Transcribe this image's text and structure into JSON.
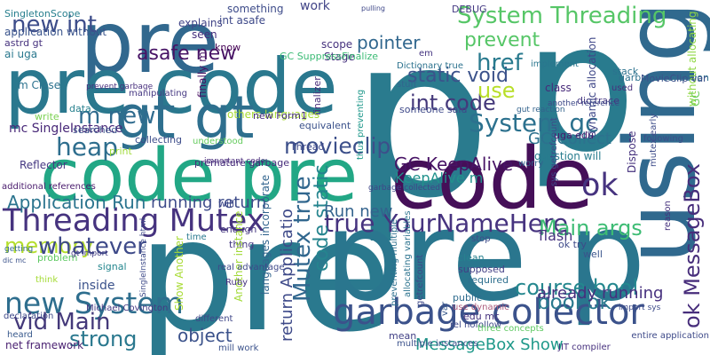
{
  "words": [
    {
      "text": "p",
      "color": "#2a7b8e"
    },
    {
      "text": "p",
      "color": "#297b8e"
    },
    {
      "text": "pre",
      "color": "#31688e"
    },
    {
      "text": "pre",
      "color": "#2a798e"
    },
    {
      "text": "code",
      "color": "#450f58"
    },
    {
      "text": "code pre",
      "color": "#22a785"
    },
    {
      "text": "pre code",
      "color": "#2a788e"
    },
    {
      "text": "gt gt",
      "color": "#2e6f8e"
    },
    {
      "text": "using",
      "color": "#30698e"
    },
    {
      "text": "pre p",
      "color": "#2a768e"
    },
    {
      "text": "garbage collector",
      "color": "#3b528b"
    },
    {
      "text": "System Threading",
      "color": "#56c667"
    },
    {
      "text": "Threading Mutex",
      "color": "#46337f"
    },
    {
      "text": "true YourNameHere",
      "color": "#46337f"
    },
    {
      "text": "System gc",
      "color": "#2c718e"
    },
    {
      "text": "int code",
      "color": "#44387a"
    },
    {
      "text": "ok",
      "color": "#46337f"
    },
    {
      "text": "Mutex true",
      "color": "#31678e"
    },
    {
      "text": "code static",
      "color": "#25848e"
    },
    {
      "text": "course bool",
      "color": "#24878e"
    },
    {
      "text": "new System",
      "color": "#2e6e8e"
    },
    {
      "text": "vid Main",
      "color": "#44397a"
    },
    {
      "text": "heap",
      "color": "#2e6e8e"
    },
    {
      "text": "memory",
      "color": "#b4de2c"
    },
    {
      "text": "whatever",
      "color": "#3e4a89"
    },
    {
      "text": "strong",
      "color": "#2a788e"
    },
    {
      "text": "object",
      "color": "#3b528b"
    },
    {
      "text": "new int",
      "color": "#3d4d8a"
    },
    {
      "text": "m new",
      "color": "#2f6b8e"
    },
    {
      "text": "asafe new",
      "color": "#471365"
    },
    {
      "text": "pointer",
      "color": "#31678e"
    },
    {
      "text": "prevent",
      "color": "#56c667"
    },
    {
      "text": "static void",
      "color": "#3b528b"
    },
    {
      "text": "href",
      "color": "#297a8e"
    },
    {
      "text": "use",
      "color": "#b8de29"
    },
    {
      "text": "movieclip",
      "color": "#3c4f8a"
    },
    {
      "text": "Application Run",
      "color": "#2b748e"
    },
    {
      "text": "Main args",
      "color": "#3dbc74"
    },
    {
      "text": "bool ok",
      "color": "#29798e"
    },
    {
      "text": "ok MessageBox",
      "color": "#472d7b"
    },
    {
      "text": "Run new",
      "color": "#33638d"
    },
    {
      "text": "return Applicatio",
      "color": "#3e4a89"
    },
    {
      "text": "GC KeepAlive",
      "color": "#471365"
    },
    {
      "text": "GC Collect",
      "color": "#2d718e"
    },
    {
      "text": "MessageBox Show",
      "color": "#1f998a"
    },
    {
      "text": "already running",
      "color": "#46307e"
    },
    {
      "text": "running return",
      "color": "#3e4c8a"
    },
    {
      "text": "KeepAlive m",
      "color": "#21918c"
    },
    {
      "text": "flash",
      "color": "#46327e"
    },
    {
      "text": "SingletonScope",
      "color": "#277f8e"
    },
    {
      "text": "application without",
      "color": "#3a548c"
    },
    {
      "text": "astrd gt",
      "color": "#46327e"
    },
    {
      "text": "ai uga",
      "color": "#2a788e"
    },
    {
      "text": "m Close",
      "color": "#2c728e"
    },
    {
      "text": "mc SingleInstance",
      "color": "#482878"
    },
    {
      "text": "explains",
      "color": "#414487"
    },
    {
      "text": "scope",
      "color": "#46327e"
    },
    {
      "text": "Stage",
      "color": "#46327e"
    },
    {
      "text": "GC SuppressFinalize",
      "color": "#3bbb75"
    },
    {
      "text": "finalizer",
      "color": "#472c7a"
    },
    {
      "text": "dic trace",
      "color": "#453781"
    },
    {
      "text": "garbage collection",
      "color": "#2d708e"
    },
    {
      "text": "without allocating",
      "color": "#8fd744"
    },
    {
      "text": "GC",
      "color": "#6ccd5a"
    },
    {
      "text": "stack",
      "color": "#2c728e"
    },
    {
      "text": "MovieClip var",
      "color": "#3c4f8a"
    },
    {
      "text": "used",
      "color": "#472f7d"
    },
    {
      "text": "em",
      "color": "#453581"
    },
    {
      "text": "stuff",
      "color": "#32658e"
    },
    {
      "text": "class",
      "color": "#472a7a"
    },
    {
      "text": "someone said",
      "color": "#3e4989"
    },
    {
      "text": "dynamic allocation",
      "color": "#3f4788"
    },
    {
      "text": "uga edu",
      "color": "#481a6c"
    },
    {
      "text": "following",
      "color": "#3d4e8a"
    },
    {
      "text": "question will",
      "color": "#287c8e"
    },
    {
      "text": "worry",
      "color": "#33638d"
    },
    {
      "text": "Dispose",
      "color": "#46327e"
    },
    {
      "text": "others languages",
      "color": "#a8db34"
    },
    {
      "text": "manipulating",
      "color": "#453882"
    },
    {
      "text": "searched",
      "color": "#3b528b"
    },
    {
      "text": "data",
      "color": "#27808e"
    },
    {
      "text": "write",
      "color": "#7ad151"
    },
    {
      "text": "print",
      "color": "#a0da39"
    },
    {
      "text": "collecting",
      "color": "#3d4d8a"
    },
    {
      "text": "premature garbage",
      "color": "#472d7b"
    },
    {
      "text": "understood",
      "color": "#65cb5e"
    },
    {
      "text": "equivalent",
      "color": "#3b528b"
    },
    {
      "text": "Thread",
      "color": "#3e4989"
    },
    {
      "text": "thus preventing",
      "color": "#1f988b"
    },
    {
      "text": "new Form1",
      "color": "#472f7d"
    },
    {
      "text": "net framework",
      "color": "#481f70"
    },
    {
      "text": "problem",
      "color": "#5ec962"
    },
    {
      "text": "inside",
      "color": "#3b528b"
    },
    {
      "text": "signal",
      "color": "#24868e"
    },
    {
      "text": "think",
      "color": "#a5db36"
    },
    {
      "text": "Reflector",
      "color": "#453882"
    },
    {
      "text": "getting",
      "color": "#31678e"
    },
    {
      "text": "dic mc",
      "color": "#3b528b"
    },
    {
      "text": "time",
      "color": "#29798e"
    },
    {
      "text": "will",
      "color": "#3f4889"
    },
    {
      "text": "enough",
      "color": "#453781"
    },
    {
      "text": "thing",
      "color": "#443983"
    },
    {
      "text": "Show Another",
      "color": "#a8db34"
    },
    {
      "text": "Another instance",
      "color": "#a2da37"
    },
    {
      "text": "languages incorporate",
      "color": "#32658e"
    },
    {
      "text": "real advantage",
      "color": "#3e4989"
    },
    {
      "text": "Ruby",
      "color": "#46327e"
    },
    {
      "text": "different",
      "color": "#3f4788"
    },
    {
      "text": "clean",
      "color": "#27808e"
    },
    {
      "text": "supposed",
      "color": "#423f85"
    },
    {
      "text": "required",
      "color": "#2e6f8e"
    },
    {
      "text": "public",
      "color": "#2f6c8e"
    },
    {
      "text": "edu mc",
      "color": "#46337f"
    },
    {
      "text": "rel nofollow",
      "color": "#3e4989"
    },
    {
      "text": "three concepts",
      "color": "#5ec962"
    },
    {
      "text": "mean",
      "color": "#424186"
    },
    {
      "text": "well",
      "color": "#3a548c"
    },
    {
      "text": "ok try",
      "color": "#3e4a89"
    },
    {
      "text": "var",
      "color": "#38598c"
    },
    {
      "text": "work",
      "color": "#414487"
    },
    {
      "text": "something",
      "color": "#3e4c8a"
    },
    {
      "text": "int asafe",
      "color": "#3e4989"
    },
    {
      "text": "seen",
      "color": "#46307e"
    },
    {
      "text": "know",
      "color": "#440154"
    },
    {
      "text": "finally m",
      "color": "#471164"
    },
    {
      "text": "multiple instances",
      "color": "#3b528b"
    },
    {
      "text": "DEBUG",
      "color": "#443983"
    },
    {
      "text": "stop",
      "color": "#3e4c8a"
    },
    {
      "text": "garbage collected",
      "color": "#3f4788"
    },
    {
      "text": "additional references",
      "color": "#481a6c"
    },
    {
      "text": "mill work",
      "color": "#3b528b"
    },
    {
      "text": "entire application",
      "color": "#3e4a89"
    },
    {
      "text": "JIT compiler",
      "color": "#46307e"
    },
    {
      "text": "use dynamic",
      "color": "#ad5d7e"
    },
    {
      "text": "heard",
      "color": "#38598c"
    },
    {
      "text": "declaration",
      "color": "#3e4989"
    },
    {
      "text": "Michael Covington",
      "color": "#443983"
    },
    {
      "text": "pulling",
      "color": "#3f4889"
    },
    {
      "text": "gt import",
      "color": "#433d84"
    },
    {
      "text": "important code",
      "color": "#472a7a"
    },
    {
      "text": "SingleInstance html",
      "color": "#3e4a89"
    },
    {
      "text": "preventing multiple",
      "color": "#2d708e"
    },
    {
      "text": "allocating variables",
      "color": "#2c738e"
    },
    {
      "text": "getrefcount",
      "color": "#3e4989"
    },
    {
      "text": "prevent garbage",
      "color": "#472f7d"
    },
    {
      "text": "another reference",
      "color": "#3e4a89"
    },
    {
      "text": "gut reaction",
      "color": "#33638d"
    },
    {
      "text": "implement",
      "color": "#2a768e"
    },
    {
      "text": "Dictionary true",
      "color": "#2c728e"
    },
    {
      "text": "mutex early",
      "color": "#3e4c8a"
    },
    {
      "text": "reason",
      "color": "#46327e"
    },
    {
      "text": "sys getrefcount",
      "color": "#3e4989"
    },
    {
      "text": "import sys",
      "color": "#3e4c8a"
    }
  ]
}
